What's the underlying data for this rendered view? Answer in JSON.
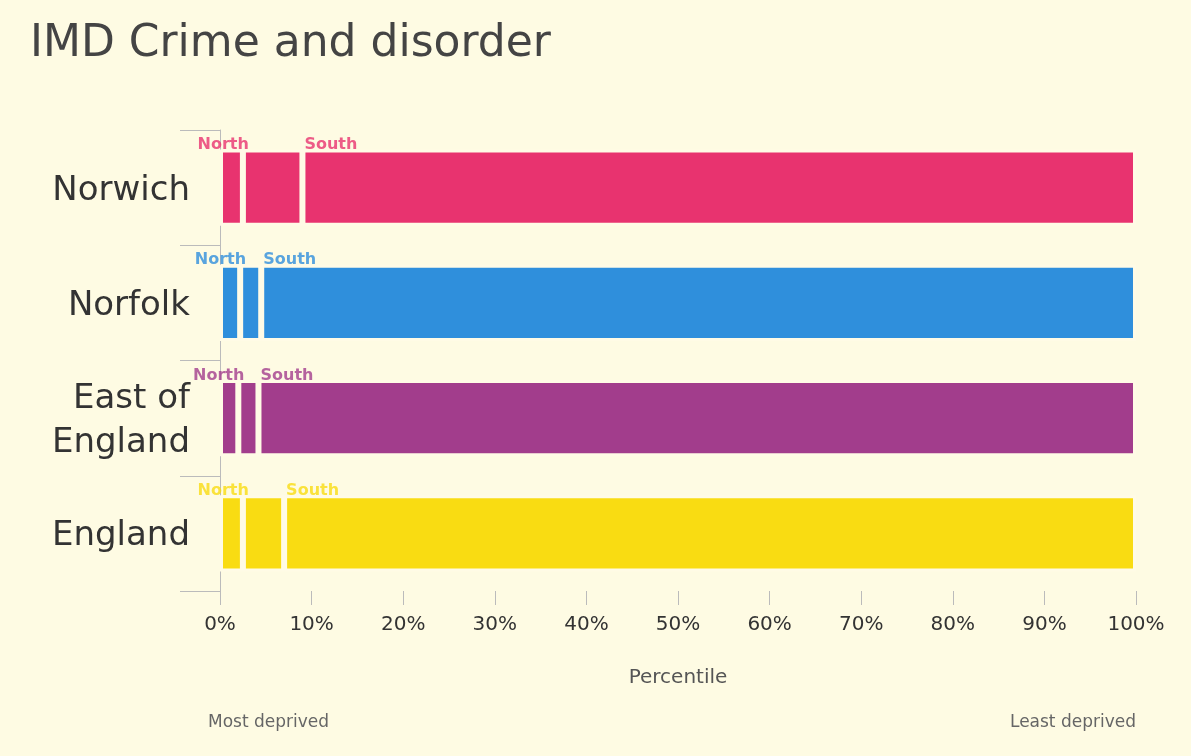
{
  "chart_data": {
    "type": "bar",
    "orientation": "horizontal",
    "stacked": true,
    "title": "IMD Crime and disorder",
    "xlabel": "Percentile",
    "categories": [
      "Norwich",
      "Norfolk",
      "East of\nEngland",
      "England"
    ],
    "series": [
      {
        "colors": [
          "#e8336f",
          "#2f8fdc",
          "#a23d8c",
          "#f9dc12"
        ],
        "values": [
          2.5,
          2.2,
          2,
          2.5
        ]
      },
      {
        "colors": [
          "#e8336f",
          "#2f8fdc",
          "#a23d8c",
          "#f9dc12"
        ],
        "values": [
          6.5,
          2.3,
          2.2,
          4.5
        ]
      },
      {
        "colors": [
          "#e8336f",
          "#2f8fdc",
          "#a23d8c",
          "#f9dc12"
        ],
        "values": [
          91,
          95.5,
          95.8,
          93
        ]
      }
    ],
    "xlim": [
      0,
      100
    ],
    "xticks": [
      {
        "value": 0,
        "label": "0%"
      },
      {
        "value": 10,
        "label": "10%"
      },
      {
        "value": 20,
        "label": "20%"
      },
      {
        "value": 30,
        "label": "30%"
      },
      {
        "value": 40,
        "label": "40%"
      },
      {
        "value": 50,
        "label": "50%"
      },
      {
        "value": 60,
        "label": "60%"
      },
      {
        "value": 70,
        "label": "70%"
      },
      {
        "value": 80,
        "label": "80%"
      },
      {
        "value": 90,
        "label": "90%"
      },
      {
        "value": 100,
        "label": "100%"
      }
    ],
    "grid": false,
    "annotations": [
      {
        "text": "North",
        "x": 2.5,
        "y": "Norwich"
      },
      {
        "text": "South",
        "x": 9,
        "y": "Norwich"
      },
      {
        "text": "North",
        "x": 2.2,
        "y": "Norfolk"
      },
      {
        "text": "South",
        "x": 4.5,
        "y": "Norfolk"
      },
      {
        "text": "North",
        "x": 2,
        "y": "East of\nEngland"
      },
      {
        "text": "South",
        "x": 4.2,
        "y": "East of\nEngland"
      },
      {
        "text": "North",
        "x": 2.5,
        "y": "England"
      },
      {
        "text": "South",
        "x": 7,
        "y": "England"
      },
      "Most deprived",
      "Least deprived"
    ]
  }
}
